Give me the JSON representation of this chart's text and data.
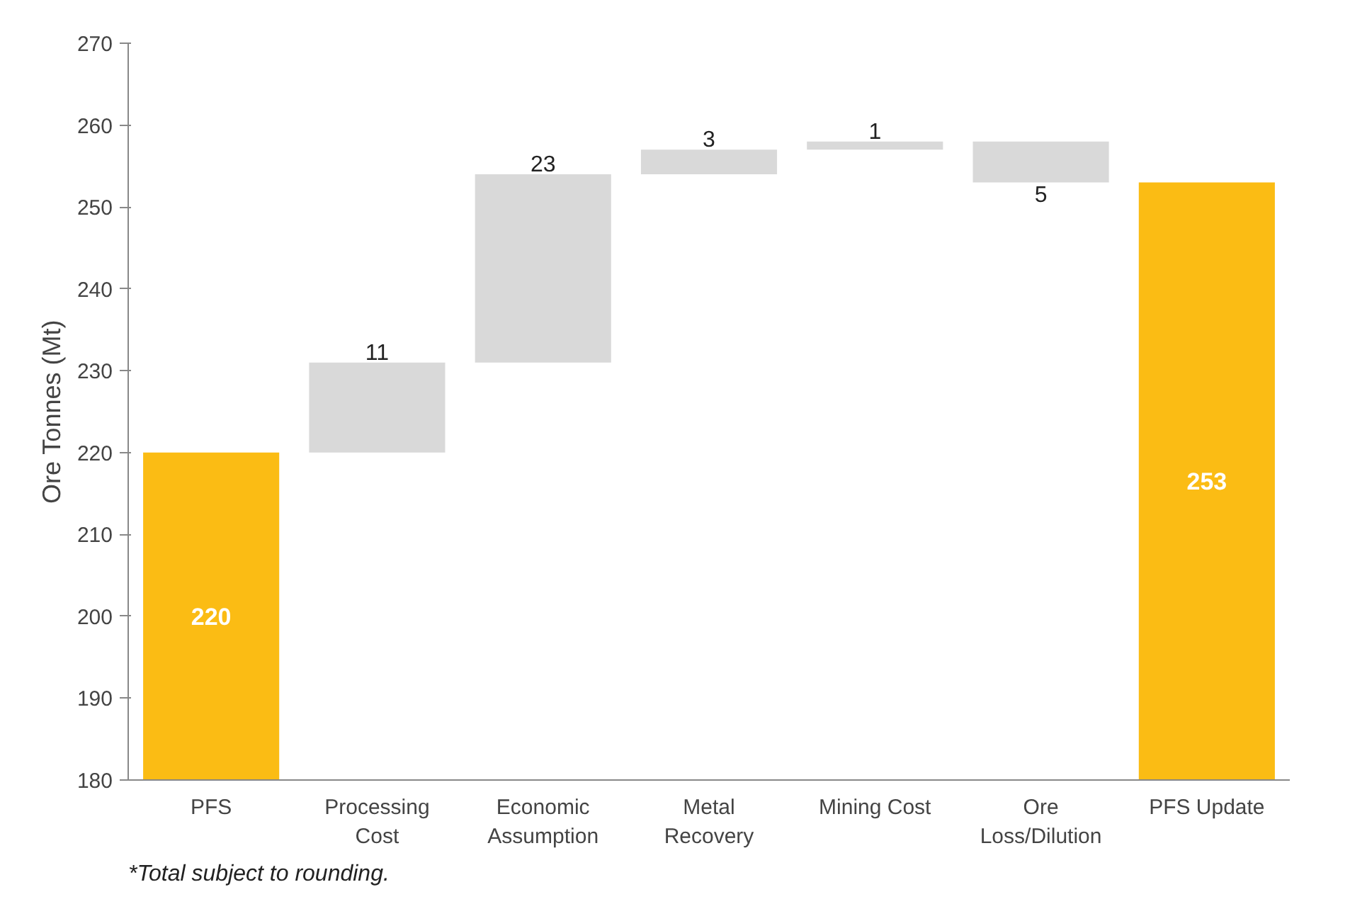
{
  "chart_data": {
    "type": "bar",
    "ylabel": "Ore Tonnes (Mt)",
    "categories": [
      "PFS",
      "Processing\nCost",
      "Economic\nAssumption",
      "Metal\nRecovery",
      "Mining Cost",
      "Ore\nLoss/Dilution",
      "PFS Update"
    ],
    "values": [
      220,
      11,
      23,
      3,
      1,
      -5,
      253
    ],
    "base": [
      null,
      220,
      231,
      254,
      257,
      258,
      null
    ],
    "colors": [
      "#fbbc14",
      "#d9d9d9",
      "#d9d9d9",
      "#d9d9d9",
      "#d9d9d9",
      "#d9d9d9",
      "#fbbc14"
    ],
    "value_labels": [
      "220",
      "11",
      "23",
      "3",
      "1",
      "5",
      "253"
    ],
    "ylim": [
      180,
      270
    ],
    "yticks": [
      180,
      190,
      200,
      210,
      220,
      230,
      240,
      250,
      260,
      270
    ],
    "grid": false,
    "annotations": [
      "*Total subject to rounding."
    ]
  }
}
